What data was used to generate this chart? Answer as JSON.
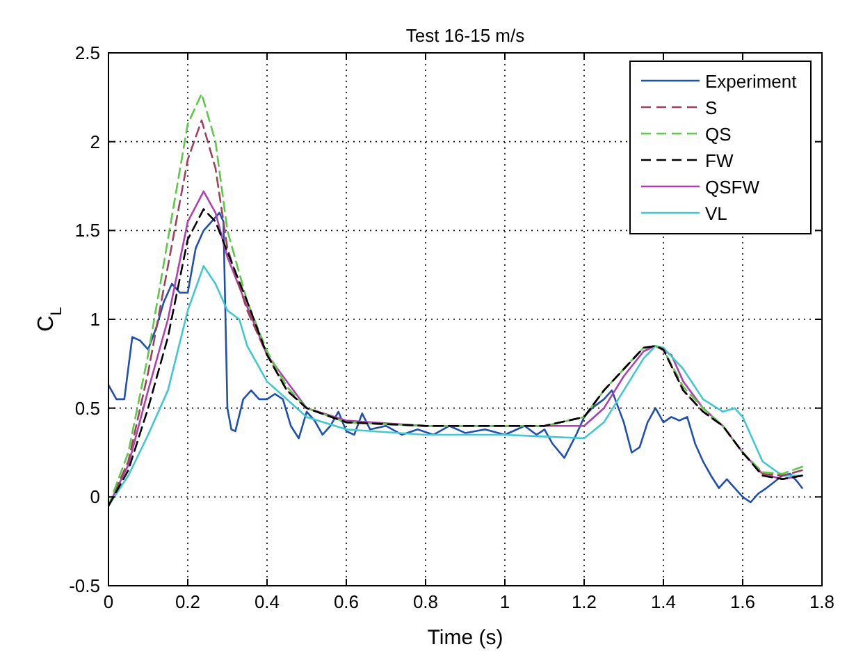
{
  "chart_data": {
    "type": "line",
    "title": "Test 16-15 m/s",
    "xlabel": "Time (s)",
    "ylabel": "C$_{L}$",
    "xlim": [
      0,
      1.8
    ],
    "xticks": [
      0,
      0.2,
      0.4,
      0.6,
      0.8,
      1,
      1.2,
      1.4,
      1.6,
      1.8
    ],
    "ylim": [
      -0.5,
      2.5
    ],
    "yticks": [
      -0.5,
      0,
      0.5,
      1,
      1.5,
      2,
      2.5
    ],
    "grid": true,
    "legend": "top right",
    "series": [
      {
        "name": "Experiment",
        "color": "#1f4fb0",
        "line_style": "solid",
        "x": [
          0,
          0.02,
          0.04,
          0.06,
          0.08,
          0.1,
          0.12,
          0.14,
          0.16,
          0.18,
          0.2,
          0.22,
          0.24,
          0.26,
          0.28,
          0.29,
          0.3,
          0.31,
          0.32,
          0.34,
          0.36,
          0.38,
          0.4,
          0.42,
          0.44,
          0.46,
          0.48,
          0.5,
          0.52,
          0.54,
          0.56,
          0.58,
          0.6,
          0.62,
          0.64,
          0.66,
          0.7,
          0.74,
          0.78,
          0.82,
          0.86,
          0.9,
          0.95,
          1,
          1.05,
          1.08,
          1.1,
          1.12,
          1.15,
          1.18,
          1.2,
          1.22,
          1.25,
          1.27,
          1.3,
          1.32,
          1.34,
          1.36,
          1.38,
          1.4,
          1.42,
          1.44,
          1.46,
          1.48,
          1.5,
          1.52,
          1.54,
          1.56,
          1.58,
          1.6,
          1.62,
          1.64,
          1.66,
          1.7,
          1.72,
          1.74,
          1.75
        ],
        "values": [
          0.63,
          0.55,
          0.55,
          0.9,
          0.88,
          0.83,
          0.95,
          1.1,
          1.2,
          1.15,
          1.15,
          1.4,
          1.5,
          1.55,
          1.6,
          1.55,
          0.5,
          0.38,
          0.37,
          0.55,
          0.6,
          0.55,
          0.55,
          0.58,
          0.55,
          0.4,
          0.33,
          0.48,
          0.43,
          0.35,
          0.4,
          0.48,
          0.37,
          0.35,
          0.47,
          0.38,
          0.4,
          0.35,
          0.38,
          0.35,
          0.4,
          0.36,
          0.38,
          0.35,
          0.4,
          0.35,
          0.38,
          0.3,
          0.22,
          0.35,
          0.45,
          0.5,
          0.55,
          0.6,
          0.42,
          0.25,
          0.28,
          0.42,
          0.5,
          0.42,
          0.45,
          0.43,
          0.45,
          0.3,
          0.2,
          0.12,
          0.05,
          0.1,
          0.05,
          0,
          -0.03,
          0.02,
          0.05,
          0.12,
          0.13,
          0.08,
          0.05
        ]
      },
      {
        "name": "S",
        "color": "#a0405a",
        "line_style": "dashed",
        "x": [
          0,
          0.05,
          0.1,
          0.15,
          0.2,
          0.235,
          0.27,
          0.3,
          0.35,
          0.4,
          0.45,
          0.5,
          0.6,
          0.8,
          1,
          1.1,
          1.2,
          1.25,
          1.3,
          1.35,
          1.38,
          1.4,
          1.45,
          1.5,
          1.55,
          1.6,
          1.65,
          1.7,
          1.75
        ],
        "values": [
          -0.05,
          0.2,
          0.7,
          1.3,
          1.9,
          2.12,
          1.85,
          1.4,
          1.05,
          0.8,
          0.6,
          0.5,
          0.42,
          0.4,
          0.4,
          0.4,
          0.45,
          0.6,
          0.72,
          0.84,
          0.85,
          0.83,
          0.6,
          0.48,
          0.4,
          0.25,
          0.13,
          0.12,
          0.15
        ]
      },
      {
        "name": "QS",
        "color": "#5cc848",
        "line_style": "dashed",
        "x": [
          0,
          0.05,
          0.1,
          0.15,
          0.2,
          0.235,
          0.27,
          0.3,
          0.35,
          0.4,
          0.45,
          0.5,
          0.6,
          0.8,
          1,
          1.1,
          1.2,
          1.25,
          1.3,
          1.35,
          1.38,
          1.4,
          1.45,
          1.5,
          1.55,
          1.6,
          1.65,
          1.7,
          1.75
        ],
        "values": [
          -0.05,
          0.25,
          0.8,
          1.45,
          2.1,
          2.27,
          2,
          1.5,
          1.1,
          0.82,
          0.62,
          0.5,
          0.42,
          0.4,
          0.4,
          0.4,
          0.45,
          0.6,
          0.72,
          0.84,
          0.85,
          0.83,
          0.62,
          0.5,
          0.4,
          0.25,
          0.14,
          0.13,
          0.17
        ]
      },
      {
        "name": "FW",
        "color": "#000000",
        "line_style": "dashed",
        "x": [
          0,
          0.05,
          0.1,
          0.15,
          0.2,
          0.24,
          0.27,
          0.3,
          0.35,
          0.4,
          0.45,
          0.5,
          0.6,
          0.8,
          1,
          1.1,
          1.2,
          1.25,
          1.3,
          1.35,
          1.38,
          1.4,
          1.45,
          1.5,
          1.55,
          1.6,
          1.65,
          1.7,
          1.75
        ],
        "values": [
          -0.05,
          0.15,
          0.5,
          0.9,
          1.45,
          1.62,
          1.55,
          1.38,
          1.1,
          0.8,
          0.6,
          0.5,
          0.42,
          0.4,
          0.4,
          0.4,
          0.45,
          0.6,
          0.72,
          0.84,
          0.85,
          0.83,
          0.6,
          0.48,
          0.4,
          0.25,
          0.12,
          0.1,
          0.12
        ]
      },
      {
        "name": "QSFW",
        "color": "#b040b0",
        "line_style": "solid",
        "x": [
          0,
          0.05,
          0.1,
          0.15,
          0.2,
          0.24,
          0.27,
          0.3,
          0.35,
          0.4,
          0.5,
          0.6,
          0.8,
          1,
          1.2,
          1.25,
          1.3,
          1.35,
          1.38,
          1.42,
          1.45,
          1.5,
          1.55,
          1.6,
          1.65,
          1.7,
          1.75
        ],
        "values": [
          -0.05,
          0.18,
          0.6,
          1,
          1.55,
          1.72,
          1.6,
          1.35,
          1.07,
          0.8,
          0.5,
          0.43,
          0.4,
          0.4,
          0.4,
          0.5,
          0.68,
          0.82,
          0.85,
          0.8,
          0.65,
          0.5,
          0.4,
          0.25,
          0.13,
          0.1,
          0.12
        ]
      },
      {
        "name": "VL",
        "color": "#40c8d0",
        "line_style": "solid",
        "x": [
          0,
          0.05,
          0.1,
          0.15,
          0.2,
          0.24,
          0.27,
          0.3,
          0.33,
          0.35,
          0.4,
          0.5,
          0.6,
          0.8,
          1,
          1.2,
          1.25,
          1.3,
          1.35,
          1.38,
          1.4,
          1.45,
          1.5,
          1.55,
          1.58,
          1.6,
          1.65,
          1.7,
          1.75
        ],
        "values": [
          -0.05,
          0.12,
          0.35,
          0.6,
          1.05,
          1.3,
          1.2,
          1.05,
          1,
          0.85,
          0.65,
          0.45,
          0.38,
          0.35,
          0.35,
          0.33,
          0.42,
          0.6,
          0.78,
          0.85,
          0.84,
          0.72,
          0.55,
          0.48,
          0.5,
          0.45,
          0.2,
          0.12,
          0.12
        ]
      }
    ]
  }
}
